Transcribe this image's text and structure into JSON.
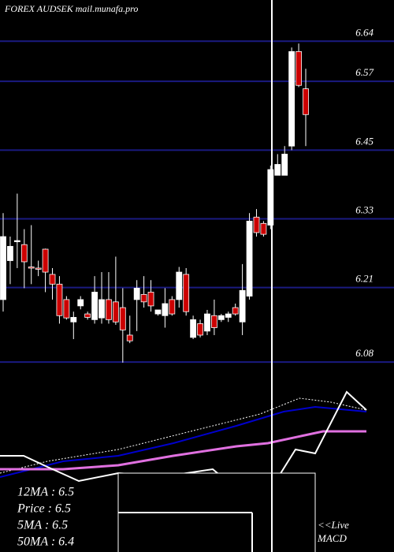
{
  "chart_data": {
    "type": "candlestick",
    "title": "FOREX  AUDSEK mail.munafa.pro",
    "categories": [
      null,
      null,
      null,
      null,
      null,
      null,
      null,
      null,
      null,
      null,
      null,
      null,
      null,
      null,
      null,
      null,
      null,
      null,
      null,
      null,
      null,
      null,
      null,
      null,
      null,
      null,
      null,
      null,
      null,
      null,
      null,
      null,
      null,
      null,
      null,
      null,
      null,
      null,
      null,
      null,
      null,
      null,
      null,
      null
    ],
    "open": [
      6.189,
      6.257,
      6.29,
      6.285,
      6.246,
      6.244,
      6.277,
      6.233,
      6.216,
      6.189,
      6.15,
      6.178,
      6.164,
      6.154,
      6.157,
      6.189,
      6.185,
      6.175,
      6.127,
      6.189,
      6.198,
      6.202,
      6.164,
      6.161,
      6.189,
      6.189,
      6.233,
      6.123,
      6.147,
      6.134,
      6.161,
      6.154,
      6.158,
      6.175,
      6.15,
      6.195,
      6.333,
      6.322,
      6.319,
      6.406,
      6.406,
      6.457,
      6.622,
      6.557
    ],
    "high": [
      6.34,
      6.299,
      6.374,
      6.312,
      6.319,
      6.257,
      6.278,
      6.244,
      6.23,
      6.195,
      6.168,
      6.195,
      6.168,
      6.23,
      6.237,
      6.237,
      6.264,
      6.209,
      6.161,
      6.223,
      6.23,
      6.223,
      6.171,
      6.209,
      6.195,
      6.246,
      6.244,
      6.161,
      6.154,
      6.171,
      6.189,
      6.164,
      6.168,
      6.182,
      6.251,
      6.34,
      6.347,
      6.326,
      6.423,
      6.443,
      6.457,
      6.629,
      6.636,
      6.592
    ],
    "low": [
      6.168,
      6.216,
      6.244,
      6.209,
      6.216,
      6.23,
      6.202,
      6.189,
      6.147,
      6.154,
      6.12,
      6.172,
      6.154,
      6.147,
      6.147,
      6.147,
      6.145,
      6.079,
      6.113,
      6.134,
      6.175,
      6.168,
      6.161,
      6.14,
      6.161,
      6.175,
      6.161,
      6.12,
      6.123,
      6.127,
      6.127,
      6.15,
      6.15,
      6.161,
      6.127,
      6.189,
      6.299,
      6.299,
      6.312,
      6.406,
      6.406,
      6.45,
      6.56,
      6.457
    ],
    "close": [
      6.299,
      6.282,
      6.292,
      6.255,
      6.244,
      6.242,
      6.237,
      6.216,
      6.161,
      6.157,
      6.158,
      6.189,
      6.158,
      6.202,
      6.189,
      6.154,
      6.15,
      6.136,
      6.117,
      6.209,
      6.185,
      6.178,
      6.171,
      6.182,
      6.164,
      6.237,
      6.168,
      6.154,
      6.127,
      6.164,
      6.14,
      6.161,
      6.164,
      6.164,
      6.205,
      6.326,
      6.306,
      6.303,
      6.416,
      6.425,
      6.443,
      6.622,
      6.563,
      6.512
    ],
    "up_color": "#ffffff",
    "down_color": "#cc0000",
    "ylim": [
      6.065,
      6.712
    ],
    "yticks": [
      6.64,
      6.57,
      6.45,
      6.33,
      6.21,
      6.08
    ],
    "grid": true,
    "grid_color": "#1a1a80",
    "info": [
      "12MA : 6.5",
      "Price   : 6.5",
      "5MA : 6.5",
      "50MA : 6.4"
    ],
    "annotations": [
      "<<Live",
      "MACD"
    ]
  }
}
